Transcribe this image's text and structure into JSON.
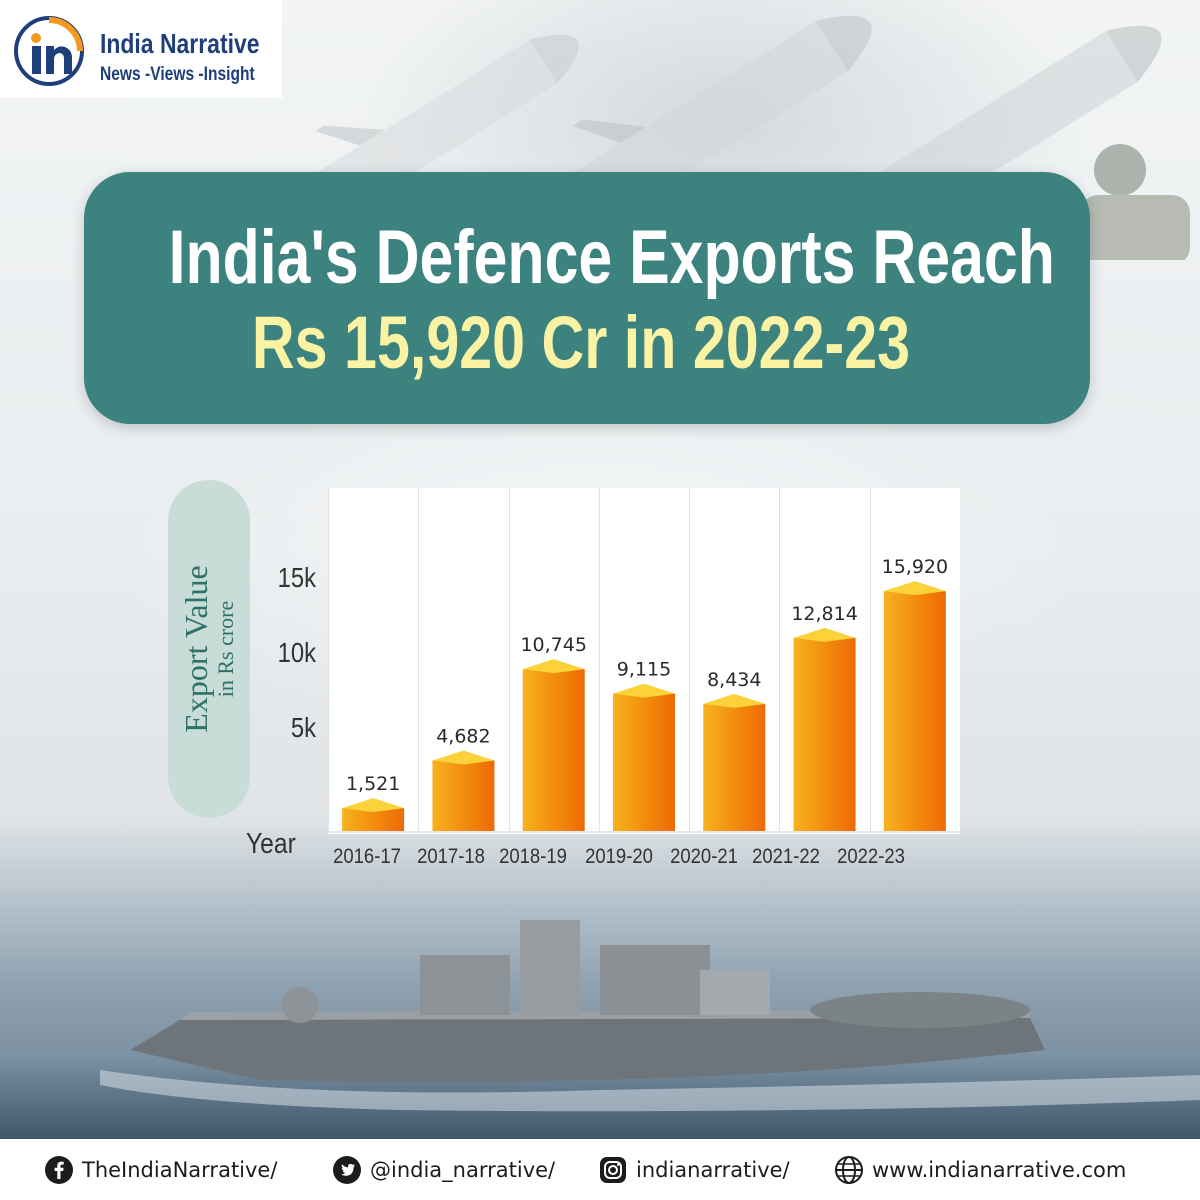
{
  "brand": {
    "name": "India Narrative",
    "tagline": "News -Views -Insight"
  },
  "headline": {
    "line1": "India's Defence Exports Reach",
    "line2": "Rs 15,920 Cr in 2022-23"
  },
  "colors": {
    "banner": "#3c827e",
    "headline_line1": "#ffffff",
    "headline_line2": "#fbf3a4",
    "bar_front": "#f28a0c",
    "bar_top": "#fbd23a",
    "axis_pill": "#c8dcd8"
  },
  "chart_data": {
    "type": "bar",
    "title": "India's Defence Exports Reach Rs 15,920 Cr in 2022-23",
    "ylabel": "Export Value",
    "ylabel_unit": "in Rs crore",
    "xlabel": "Year",
    "categories": [
      "2016-17",
      "2017-18",
      "2018-19",
      "2019-20",
      "2020-21",
      "2021-22",
      "2022-23"
    ],
    "values": [
      1521,
      4682,
      10745,
      9115,
      8434,
      12814,
      15920
    ],
    "value_labels": [
      "1,521",
      "4,682",
      "10,745",
      "9,115",
      "8,434",
      "12,814",
      "15,920"
    ],
    "yticks": [
      5000,
      10000,
      15000
    ],
    "ytick_labels": [
      "5k",
      "10k",
      "15k"
    ],
    "ylim": [
      0,
      20000
    ],
    "grid": "vertical",
    "legend": "none"
  },
  "footer": {
    "facebook": {
      "icon": "facebook-icon",
      "text": "TheIndiaNarrative/"
    },
    "twitter": {
      "icon": "twitter-icon",
      "text": "@india_narrative/"
    },
    "instagram": {
      "icon": "instagram-icon",
      "text": "indianarrative/"
    },
    "website": {
      "icon": "globe-icon",
      "text": "www.indianarrative.com"
    }
  }
}
